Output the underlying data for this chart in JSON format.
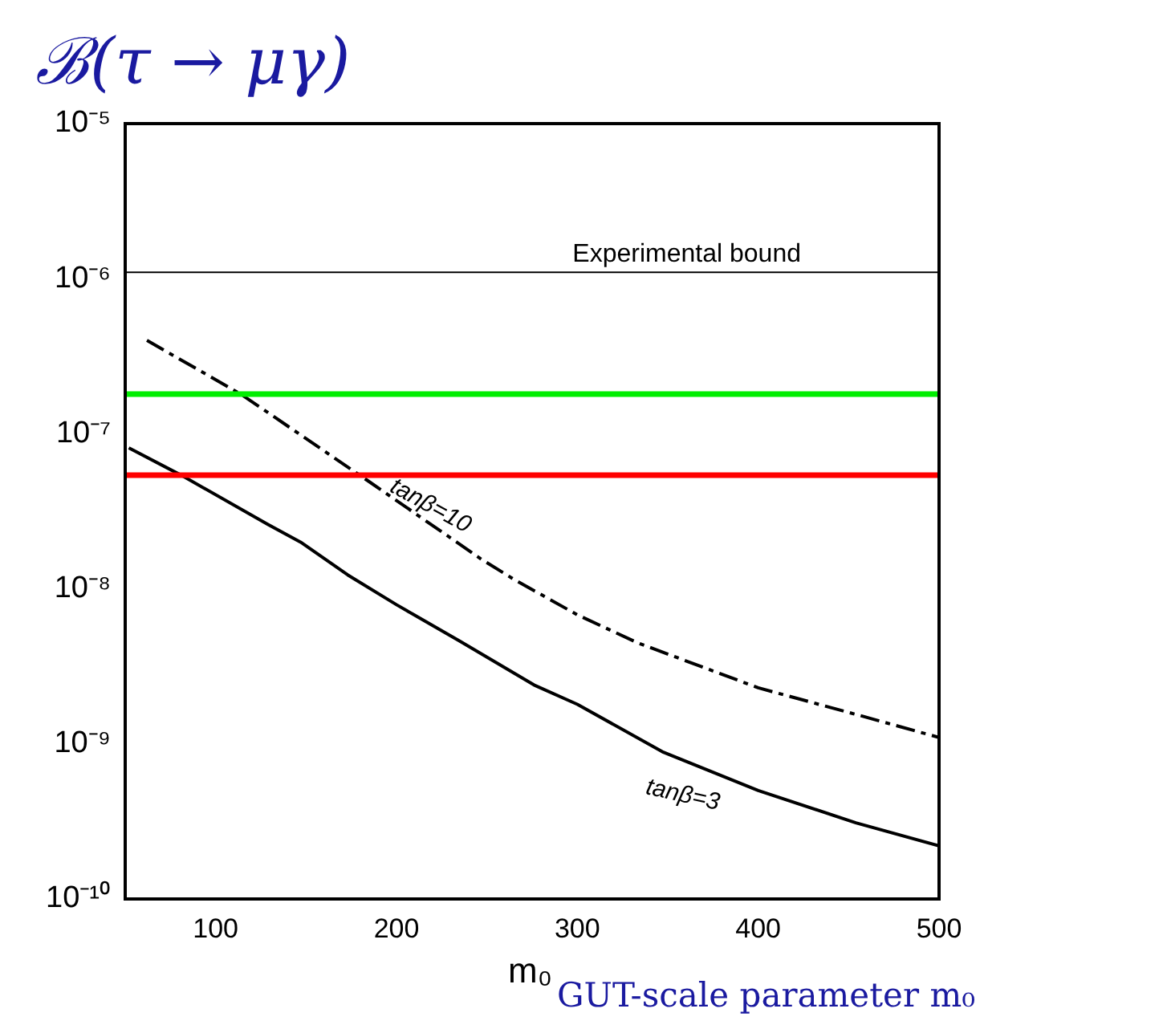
{
  "chart_data": {
    "type": "line",
    "title": "ℬ(τ → μγ)",
    "xlabel": "m₀",
    "annotations": [
      "GUT-scale parameter m₀"
    ],
    "xlim": [
      50,
      500
    ],
    "xticks": [
      100,
      200,
      300,
      400,
      500
    ],
    "ylim": [
      1e-10,
      1e-05
    ],
    "yticks": [
      {
        "value": 1e-10,
        "label": "10⁻¹⁰"
      },
      {
        "value": 1e-09,
        "label": "10⁻⁹"
      },
      {
        "value": 1e-08,
        "label": "10⁻⁸"
      },
      {
        "value": 1e-07,
        "label": "10⁻⁷"
      },
      {
        "value": 1e-06,
        "label": "10⁻⁶"
      },
      {
        "value": 1e-05,
        "label": "10⁻⁵"
      }
    ],
    "log": "y",
    "grid": false,
    "legend": false,
    "marker": "none",
    "ref_lines": [
      {
        "axis": "y",
        "value": 1.1e-06,
        "label": "Experimental bound",
        "color": "#000000"
      },
      {
        "axis": "y",
        "value": 1.8e-07,
        "color": "#00ee00"
      },
      {
        "axis": "y",
        "value": 5.4e-08,
        "color": "#ff0000"
      }
    ],
    "series": [
      {
        "name": "tanβ=10",
        "color": "#000000",
        "line_style": "dashed",
        "x": [
          62,
          114,
          185,
          247,
          265,
          300,
          333,
          400,
          454,
          500
        ],
        "values": [
          4e-07,
          1.8e-07,
          4.9e-08,
          1.55e-08,
          1.15e-08,
          6.8e-09,
          4.5e-09,
          2.3e-09,
          1.55e-09,
          1.1e-09
        ]
      },
      {
        "name": "tanβ=3",
        "color": "#000000",
        "line_style": "solid",
        "x": [
          52,
          81,
          129,
          147,
          173,
          200,
          235,
          276,
          300,
          347,
          400,
          454,
          500
        ],
        "values": [
          8.1e-08,
          5.4e-08,
          2.6e-08,
          2e-08,
          1.23e-08,
          7.9e-09,
          4.6e-09,
          2.4e-09,
          1.8e-09,
          8.9e-10,
          5e-10,
          3.1e-10,
          2.2e-10
        ]
      }
    ]
  }
}
